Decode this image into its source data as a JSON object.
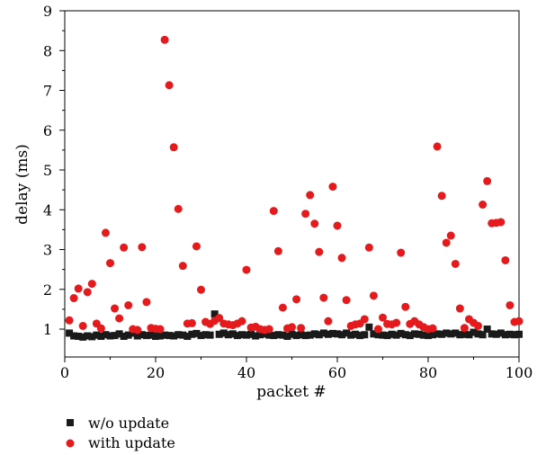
{
  "chart_data": {
    "type": "scatter",
    "xlabel": "packet #",
    "ylabel": "delay (ms)",
    "xlim": [
      0,
      100
    ],
    "ylim": [
      0.3,
      9
    ],
    "xticks": [
      0,
      20,
      40,
      60,
      80,
      100
    ],
    "yticks": [
      1,
      2,
      3,
      4,
      5,
      6,
      7,
      8,
      9
    ],
    "legend_position": "bottom-left, below plot",
    "grid": false,
    "series": [
      {
        "name": "w/o update",
        "marker": "square",
        "color": "#1a1a1a",
        "x": [
          1,
          2,
          3,
          4,
          5,
          6,
          7,
          8,
          9,
          10,
          11,
          12,
          13,
          14,
          15,
          16,
          17,
          18,
          19,
          20,
          21,
          22,
          23,
          24,
          25,
          26,
          27,
          28,
          29,
          30,
          31,
          32,
          33,
          34,
          35,
          36,
          37,
          38,
          39,
          40,
          41,
          42,
          43,
          44,
          45,
          46,
          47,
          48,
          49,
          50,
          51,
          52,
          53,
          54,
          55,
          56,
          57,
          58,
          59,
          60,
          61,
          62,
          63,
          64,
          65,
          66,
          67,
          68,
          69,
          70,
          71,
          72,
          73,
          74,
          75,
          76,
          77,
          78,
          79,
          80,
          81,
          82,
          83,
          84,
          85,
          86,
          87,
          88,
          89,
          90,
          91,
          92,
          93,
          94,
          95,
          96,
          97,
          98,
          99,
          100
        ],
        "y": [
          0.9,
          0.83,
          0.82,
          0.8,
          0.83,
          0.81,
          0.85,
          0.82,
          0.86,
          0.83,
          0.84,
          0.88,
          0.82,
          0.85,
          0.9,
          0.83,
          0.86,
          0.84,
          0.85,
          0.82,
          0.83,
          0.85,
          0.84,
          0.83,
          0.86,
          0.85,
          0.82,
          0.87,
          0.89,
          0.84,
          0.86,
          0.85,
          1.38,
          0.87,
          0.9,
          0.86,
          0.88,
          0.84,
          0.86,
          0.85,
          0.87,
          0.83,
          0.86,
          0.88,
          0.85,
          0.84,
          0.86,
          0.85,
          0.82,
          0.87,
          0.84,
          0.86,
          0.84,
          0.85,
          0.88,
          0.86,
          0.9,
          0.87,
          0.89,
          0.88,
          0.86,
          0.9,
          0.85,
          0.87,
          0.84,
          0.86,
          1.05,
          0.88,
          0.86,
          0.85,
          0.84,
          0.87,
          0.85,
          0.89,
          0.86,
          0.84,
          0.88,
          0.87,
          0.85,
          0.84,
          0.86,
          0.88,
          0.87,
          0.9,
          0.88,
          0.9,
          0.86,
          0.87,
          0.86,
          0.92,
          0.88,
          0.86,
          1.0,
          0.88,
          0.87,
          0.9,
          0.86,
          0.87,
          0.86,
          0.87
        ]
      },
      {
        "name": "with update",
        "marker": "circle",
        "color": "#e41a1c",
        "x": [
          1,
          2,
          3,
          4,
          5,
          6,
          7,
          8,
          9,
          10,
          11,
          12,
          13,
          14,
          15,
          16,
          17,
          18,
          19,
          20,
          21,
          22,
          23,
          24,
          25,
          26,
          27,
          28,
          29,
          30,
          31,
          32,
          33,
          34,
          35,
          36,
          37,
          38,
          39,
          40,
          41,
          42,
          43,
          44,
          45,
          46,
          47,
          48,
          49,
          50,
          51,
          52,
          53,
          54,
          55,
          56,
          57,
          58,
          59,
          60,
          61,
          62,
          63,
          64,
          65,
          66,
          67,
          68,
          69,
          70,
          71,
          72,
          73,
          74,
          75,
          76,
          77,
          78,
          79,
          80,
          81,
          82,
          83,
          84,
          85,
          86,
          87,
          88,
          89,
          90,
          91,
          92,
          93,
          94,
          95,
          96,
          97,
          98,
          99,
          100
        ],
        "y": [
          1.22,
          1.78,
          2.02,
          1.08,
          1.93,
          2.14,
          1.14,
          1.02,
          3.42,
          2.66,
          1.52,
          1.27,
          3.05,
          1.6,
          1.0,
          0.98,
          3.06,
          1.68,
          1.03,
          1.01,
          1.0,
          8.27,
          7.13,
          5.57,
          4.02,
          2.59,
          1.14,
          1.15,
          3.08,
          1.99,
          1.18,
          1.13,
          1.21,
          1.28,
          1.14,
          1.12,
          1.1,
          1.14,
          1.2,
          2.49,
          1.04,
          1.06,
          1.0,
          0.98,
          1.0,
          3.97,
          2.96,
          1.54,
          1.02,
          1.05,
          1.75,
          1.03,
          3.9,
          4.37,
          3.65,
          2.94,
          1.79,
          1.2,
          4.58,
          3.6,
          2.79,
          1.73,
          1.08,
          1.12,
          1.14,
          1.25,
          3.05,
          1.84,
          1.0,
          1.29,
          1.13,
          1.12,
          1.16,
          2.92,
          1.56,
          1.13,
          1.2,
          1.12,
          1.05,
          1.0,
          1.02,
          5.59,
          4.35,
          3.17,
          3.35,
          2.64,
          1.52,
          1.03,
          1.25,
          1.16,
          1.08,
          4.13,
          4.72,
          3.66,
          3.67,
          3.69,
          2.73,
          1.6,
          1.18,
          1.2
        ]
      }
    ]
  }
}
